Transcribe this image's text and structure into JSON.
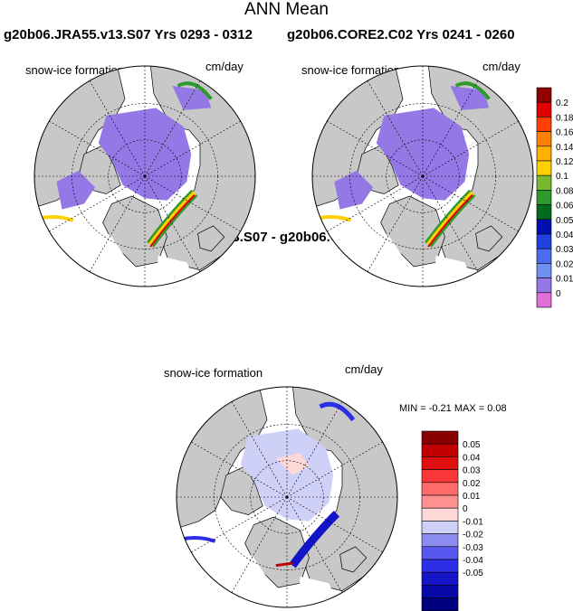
{
  "title": "ANN Mean",
  "panels": [
    {
      "title": "g20b06.JRA55.v13.S07  Yrs 0293 - 0312",
      "field": "snow-ice formation",
      "units": "cm/day"
    },
    {
      "title": "g20b06.CORE2.C02  Yrs 0241 - 0260",
      "field": "snow-ice formation",
      "units": "cm/day"
    },
    {
      "title": "g20b06.JRA55.v13.S07 - g20b06.CORE2.C02",
      "field": "snow-ice formation",
      "units": "cm/day",
      "stats": "MIN =  -0.21 MAX =   0.08"
    }
  ],
  "chart_data": [
    {
      "type": "heatmap",
      "projection": "north-polar-stereographic",
      "title": "g20b06.JRA55.v13.S07  Yrs 0293 - 0312",
      "field": "snow-ice formation",
      "units": "cm/day",
      "colorbar": {
        "labels": [
          "0",
          "0.01",
          "0.02",
          "0.03",
          "0.04",
          "0.05",
          "0.06",
          "0.08",
          "0.1",
          "0.12",
          "0.14",
          "0.16",
          "0.18",
          "0.2"
        ],
        "colors": [
          "#e070d8",
          "#9478e6",
          "#7090f0",
          "#4a6cf0",
          "#2040e0",
          "#0010b0",
          "#006a1e",
          "#2e9a2e",
          "#7ab832",
          "#ffd000",
          "#ffb000",
          "#ff8000",
          "#ff4000",
          "#e00000",
          "#900000"
        ]
      }
    },
    {
      "type": "heatmap",
      "projection": "north-polar-stereographic",
      "title": "g20b06.CORE2.C02  Yrs 0241 - 0260",
      "field": "snow-ice formation",
      "units": "cm/day"
    },
    {
      "type": "heatmap",
      "projection": "north-polar-stereographic",
      "title": "g20b06.JRA55.v13.S07 - g20b06.CORE2.C02",
      "field": "snow-ice formation",
      "units": "cm/day",
      "min": -0.21,
      "max": 0.08,
      "colorbar": {
        "labels": [
          "0.05",
          "0.04",
          "0.03",
          "0.02",
          "0.01",
          "0",
          "-0.01",
          "-0.02",
          "-0.03",
          "-0.04",
          "-0.05"
        ],
        "colors": [
          "#8a0000",
          "#c00000",
          "#e01010",
          "#f83838",
          "#ff6a6a",
          "#ff9090",
          "#ffd8d8",
          "#cfd0f8",
          "#8c8cf0",
          "#5858f0",
          "#2e2ee8",
          "#1414c8",
          "#0808a8",
          "#000080"
        ]
      }
    }
  ]
}
